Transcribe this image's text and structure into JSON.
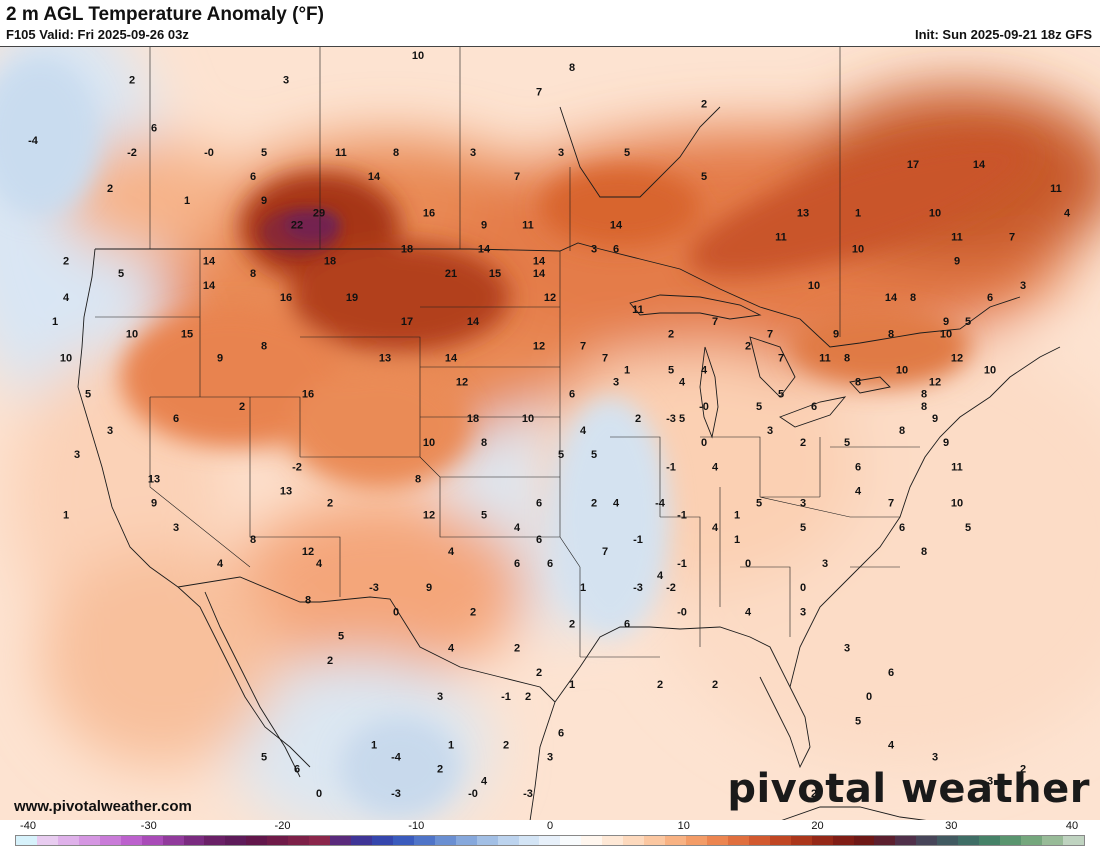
{
  "header": {
    "title": "2 m AGL Temperature Anomaly (°F)",
    "valid": "F105 Valid: Fri 2025-09-26 03z",
    "init": "Init: Sun 2025-09-21 18z GFS"
  },
  "footer": {
    "site_url": "www.pivotalweather.com",
    "logo": "pivotal weather"
  },
  "colorbar": {
    "ticks": [
      "-40",
      "-30",
      "-20",
      "-10",
      "0",
      "10",
      "20",
      "30",
      "40"
    ],
    "min": -40,
    "max": 40,
    "colors": [
      "#d7f2fb",
      "#e8ccf0",
      "#dfb1ea",
      "#d596e2",
      "#c97bd8",
      "#bc61cd",
      "#a94bb8",
      "#913a9c",
      "#7a2b80",
      "#6a2067",
      "#5e1b5a",
      "#62164b",
      "#6f1a48",
      "#7d2048",
      "#8b264b",
      "#5a2a7c",
      "#3f3597",
      "#3546ad",
      "#3a5bbd",
      "#4f74c8",
      "#6a8fd2",
      "#86a8dc",
      "#a2bfe5",
      "#bcd3ee",
      "#d3e4f5",
      "#e7f0fa",
      "#f8fbfd",
      "#fff6ee",
      "#fee8d6",
      "#fdd9bd",
      "#fbc7a1",
      "#f8b283",
      "#f39c67",
      "#ec8550",
      "#e06f3e",
      "#d2592f",
      "#c04623",
      "#ab361b",
      "#952817",
      "#801d15",
      "#6e1816",
      "#5c1f2e",
      "#50304a",
      "#474559",
      "#415a61",
      "#3f6e66",
      "#468268",
      "#5a956f",
      "#75a77d",
      "#98bb98",
      "#bfd3c0"
    ]
  },
  "anomaly_labels": [
    {
      "v": "2",
      "lon": -138,
      "lat": 57
    },
    {
      "v": "3",
      "lon": -124,
      "lat": 57
    },
    {
      "v": "10",
      "lon": -112,
      "lat": 59
    },
    {
      "v": "8",
      "lon": -98,
      "lat": 58
    },
    {
      "v": "-4",
      "lon": -147,
      "lat": 52
    },
    {
      "v": "6",
      "lon": -136,
      "lat": 53
    },
    {
      "v": "7",
      "lon": -101,
      "lat": 56
    },
    {
      "v": "2",
      "lon": -86,
      "lat": 55
    },
    {
      "v": "-2",
      "lon": -138,
      "lat": 51
    },
    {
      "v": "-0",
      "lon": -131,
      "lat": 51
    },
    {
      "v": "5",
      "lon": -126,
      "lat": 51
    },
    {
      "v": "11",
      "lon": -119,
      "lat": 51
    },
    {
      "v": "8",
      "lon": -114,
      "lat": 51
    },
    {
      "v": "3",
      "lon": -107,
      "lat": 51
    },
    {
      "v": "3",
      "lon": -99,
      "lat": 51
    },
    {
      "v": "5",
      "lon": -93,
      "lat": 51
    },
    {
      "v": "17",
      "lon": -67,
      "lat": 50
    },
    {
      "v": "14",
      "lon": -61,
      "lat": 50
    },
    {
      "v": "2",
      "lon": -140,
      "lat": 48
    },
    {
      "v": "6",
      "lon": -127,
      "lat": 49
    },
    {
      "v": "14",
      "lon": -116,
      "lat": 49
    },
    {
      "v": "7",
      "lon": -103,
      "lat": 49
    },
    {
      "v": "5",
      "lon": -86,
      "lat": 49
    },
    {
      "v": "11",
      "lon": -54,
      "lat": 48
    },
    {
      "v": "1",
      "lon": -133,
      "lat": 47
    },
    {
      "v": "9",
      "lon": -126,
      "lat": 47
    },
    {
      "v": "13",
      "lon": -77,
      "lat": 46
    },
    {
      "v": "16",
      "lon": -111,
      "lat": 46
    },
    {
      "v": "22",
      "lon": -123,
      "lat": 45
    },
    {
      "v": "29",
      "lon": -121,
      "lat": 46
    },
    {
      "v": "9",
      "lon": -106,
      "lat": 45
    },
    {
      "v": "11",
      "lon": -102,
      "lat": 45
    },
    {
      "v": "14",
      "lon": -94,
      "lat": 45
    },
    {
      "v": "1",
      "lon": -72,
      "lat": 46
    },
    {
      "v": "10",
      "lon": -65,
      "lat": 46
    },
    {
      "v": "4",
      "lon": -53,
      "lat": 46
    },
    {
      "v": "3",
      "lon": -96,
      "lat": 43
    },
    {
      "v": "2",
      "lon": -144,
      "lat": 42
    },
    {
      "v": "14",
      "lon": -131,
      "lat": 42
    },
    {
      "v": "18",
      "lon": -120,
      "lat": 42
    },
    {
      "v": "18",
      "lon": -113,
      "lat": 43
    },
    {
      "v": "14",
      "lon": -106,
      "lat": 43
    },
    {
      "v": "14",
      "lon": -101,
      "lat": 42
    },
    {
      "v": "6",
      "lon": -94,
      "lat": 43
    },
    {
      "v": "11",
      "lon": -79,
      "lat": 44
    },
    {
      "v": "10",
      "lon": -72,
      "lat": 43
    },
    {
      "v": "11",
      "lon": -63,
      "lat": 44
    },
    {
      "v": "7",
      "lon": -58,
      "lat": 44
    },
    {
      "v": "8",
      "lon": -127,
      "lat": 41
    },
    {
      "v": "21",
      "lon": -109,
      "lat": 41
    },
    {
      "v": "15",
      "lon": -105,
      "lat": 41
    },
    {
      "v": "14",
      "lon": -101,
      "lat": 41
    },
    {
      "v": "9",
      "lon": -63,
      "lat": 42
    },
    {
      "v": "5",
      "lon": -139,
      "lat": 41
    },
    {
      "v": "14",
      "lon": -131,
      "lat": 40
    },
    {
      "v": "10",
      "lon": -76,
      "lat": 40
    },
    {
      "v": "4",
      "lon": -144,
      "lat": 39
    },
    {
      "v": "16",
      "lon": -124,
      "lat": 39
    },
    {
      "v": "19",
      "lon": -118,
      "lat": 39
    },
    {
      "v": "12",
      "lon": -100,
      "lat": 39
    },
    {
      "v": "14",
      "lon": -69,
      "lat": 39
    },
    {
      "v": "8",
      "lon": -67,
      "lat": 39
    },
    {
      "v": "6",
      "lon": -60,
      "lat": 39
    },
    {
      "v": "3",
      "lon": -57,
      "lat": 40
    },
    {
      "v": "11",
      "lon": -92,
      "lat": 38
    },
    {
      "v": "7",
      "lon": -85,
      "lat": 37
    },
    {
      "v": "9",
      "lon": -64,
      "lat": 37
    },
    {
      "v": "1",
      "lon": -145,
      "lat": 37
    },
    {
      "v": "10",
      "lon": -138,
      "lat": 36
    },
    {
      "v": "15",
      "lon": -133,
      "lat": 36
    },
    {
      "v": "17",
      "lon": -113,
      "lat": 37
    },
    {
      "v": "14",
      "lon": -107,
      "lat": 37
    },
    {
      "v": "2",
      "lon": -89,
      "lat": 36
    },
    {
      "v": "7",
      "lon": -80,
      "lat": 36
    },
    {
      "v": "9",
      "lon": -74,
      "lat": 36
    },
    {
      "v": "8",
      "lon": -69,
      "lat": 36
    },
    {
      "v": "10",
      "lon": -64,
      "lat": 36
    },
    {
      "v": "5",
      "lon": -62,
      "lat": 37
    },
    {
      "v": "8",
      "lon": -126,
      "lat": 35
    },
    {
      "v": "12",
      "lon": -101,
      "lat": 35
    },
    {
      "v": "7",
      "lon": -97,
      "lat": 35
    },
    {
      "v": "2",
      "lon": -82,
      "lat": 35
    },
    {
      "v": "7",
      "lon": -79,
      "lat": 34
    },
    {
      "v": "8",
      "lon": -73,
      "lat": 34
    },
    {
      "v": "12",
      "lon": -63,
      "lat": 34
    },
    {
      "v": "10",
      "lon": -144,
      "lat": 34
    },
    {
      "v": "9",
      "lon": -130,
      "lat": 34
    },
    {
      "v": "13",
      "lon": -115,
      "lat": 34
    },
    {
      "v": "14",
      "lon": -109,
      "lat": 34
    },
    {
      "v": "7",
      "lon": -95,
      "lat": 34
    },
    {
      "v": "5",
      "lon": -89,
      "lat": 33
    },
    {
      "v": "4",
      "lon": -86,
      "lat": 33
    },
    {
      "v": "11",
      "lon": -75,
      "lat": 34
    },
    {
      "v": "10",
      "lon": -68,
      "lat": 33
    },
    {
      "v": "10",
      "lon": -60,
      "lat": 33
    },
    {
      "v": "1",
      "lon": -93,
      "lat": 33
    },
    {
      "v": "4",
      "lon": -88,
      "lat": 32
    },
    {
      "v": "5",
      "lon": -79,
      "lat": 31
    },
    {
      "v": "8",
      "lon": -72,
      "lat": 32
    },
    {
      "v": "8",
      "lon": -66,
      "lat": 31
    },
    {
      "v": "12",
      "lon": -65,
      "lat": 32
    },
    {
      "v": "5",
      "lon": -142,
      "lat": 31
    },
    {
      "v": "16",
      "lon": -122,
      "lat": 31
    },
    {
      "v": "12",
      "lon": -108,
      "lat": 32
    },
    {
      "v": "6",
      "lon": -98,
      "lat": 31
    },
    {
      "v": "3",
      "lon": -94,
      "lat": 32
    },
    {
      "v": "-0",
      "lon": -86,
      "lat": 30
    },
    {
      "v": "5",
      "lon": -81,
      "lat": 30
    },
    {
      "v": "6",
      "lon": -76,
      "lat": 30
    },
    {
      "v": "8",
      "lon": -66,
      "lat": 30
    },
    {
      "v": "6",
      "lon": -134,
      "lat": 29
    },
    {
      "v": "2",
      "lon": -128,
      "lat": 30
    },
    {
      "v": "18",
      "lon": -107,
      "lat": 29
    },
    {
      "v": "10",
      "lon": -102,
      "lat": 29
    },
    {
      "v": "2",
      "lon": -92,
      "lat": 29
    },
    {
      "v": "-3",
      "lon": -89,
      "lat": 29
    },
    {
      "v": "5",
      "lon": -88,
      "lat": 29
    },
    {
      "v": "3",
      "lon": -80,
      "lat": 28
    },
    {
      "v": "9",
      "lon": -65,
      "lat": 29
    },
    {
      "v": "3",
      "lon": -140,
      "lat": 28
    },
    {
      "v": "10",
      "lon": -111,
      "lat": 27
    },
    {
      "v": "8",
      "lon": -106,
      "lat": 27
    },
    {
      "v": "4",
      "lon": -97,
      "lat": 28
    },
    {
      "v": "0",
      "lon": -86,
      "lat": 27
    },
    {
      "v": "2",
      "lon": -77,
      "lat": 27
    },
    {
      "v": "5",
      "lon": -73,
      "lat": 27
    },
    {
      "v": "8",
      "lon": -68,
      "lat": 28
    },
    {
      "v": "9",
      "lon": -64,
      "lat": 27
    },
    {
      "v": "3",
      "lon": -143,
      "lat": 26
    },
    {
      "v": "-2",
      "lon": -123,
      "lat": 25
    },
    {
      "v": "5",
      "lon": -99,
      "lat": 26
    },
    {
      "v": "5",
      "lon": -96,
      "lat": 26
    },
    {
      "v": "-1",
      "lon": -89,
      "lat": 25
    },
    {
      "v": "4",
      "lon": -85,
      "lat": 25
    },
    {
      "v": "6",
      "lon": -72,
      "lat": 25
    },
    {
      "v": "11",
      "lon": -63,
      "lat": 25
    },
    {
      "v": "13",
      "lon": -136,
      "lat": 24
    },
    {
      "v": "13",
      "lon": -124,
      "lat": 23
    },
    {
      "v": "8",
      "lon": -112,
      "lat": 24
    },
    {
      "v": "6",
      "lon": -101,
      "lat": 22
    },
    {
      "v": "4",
      "lon": -94,
      "lat": 22
    },
    {
      "v": "-4",
      "lon": -90,
      "lat": 22
    },
    {
      "v": "5",
      "lon": -81,
      "lat": 22
    },
    {
      "v": "3",
      "lon": -77,
      "lat": 22
    },
    {
      "v": "7",
      "lon": -69,
      "lat": 22
    },
    {
      "v": "10",
      "lon": -63,
      "lat": 22
    },
    {
      "v": "4",
      "lon": -72,
      "lat": 23
    },
    {
      "v": "9",
      "lon": -136,
      "lat": 22
    },
    {
      "v": "2",
      "lon": -120,
      "lat": 22
    },
    {
      "v": "12",
      "lon": -111,
      "lat": 21
    },
    {
      "v": "2",
      "lon": -96,
      "lat": 22
    },
    {
      "v": "-1",
      "lon": -88,
      "lat": 21
    },
    {
      "v": "1",
      "lon": -83,
      "lat": 21
    },
    {
      "v": "6",
      "lon": -68,
      "lat": 20
    },
    {
      "v": "5",
      "lon": -62,
      "lat": 20
    },
    {
      "v": "1",
      "lon": -144,
      "lat": 21
    },
    {
      "v": "3",
      "lon": -134,
      "lat": 20
    },
    {
      "v": "8",
      "lon": -127,
      "lat": 19
    },
    {
      "v": "5",
      "lon": -106,
      "lat": 21
    },
    {
      "v": "4",
      "lon": -103,
      "lat": 20
    },
    {
      "v": "6",
      "lon": -101,
      "lat": 19
    },
    {
      "v": "-1",
      "lon": -92,
      "lat": 19
    },
    {
      "v": "4",
      "lon": -85,
      "lat": 20
    },
    {
      "v": "1",
      "lon": -83,
      "lat": 19
    },
    {
      "v": "5",
      "lon": -77,
      "lat": 20
    },
    {
      "v": "12",
      "lon": -122,
      "lat": 18
    },
    {
      "v": "4",
      "lon": -109,
      "lat": 18
    },
    {
      "v": "7",
      "lon": -95,
      "lat": 18
    },
    {
      "v": "0",
      "lon": -82,
      "lat": 17
    },
    {
      "v": "3",
      "lon": -75,
      "lat": 17
    },
    {
      "v": "8",
      "lon": -66,
      "lat": 18
    },
    {
      "v": "4",
      "lon": -130,
      "lat": 17
    },
    {
      "v": "4",
      "lon": -121,
      "lat": 17
    },
    {
      "v": "6",
      "lon": -103,
      "lat": 17
    },
    {
      "v": "6",
      "lon": -100,
      "lat": 17
    },
    {
      "v": "-1",
      "lon": -88,
      "lat": 17
    },
    {
      "v": "4",
      "lon": -90,
      "lat": 16
    },
    {
      "v": "-3",
      "lon": -92,
      "lat": 15
    },
    {
      "v": "-2",
      "lon": -89,
      "lat": 15
    },
    {
      "v": "0",
      "lon": -77,
      "lat": 15
    },
    {
      "v": "8",
      "lon": -122,
      "lat": 14
    },
    {
      "v": "-3",
      "lon": -116,
      "lat": 15
    },
    {
      "v": "9",
      "lon": -111,
      "lat": 15
    },
    {
      "v": "1",
      "lon": -97,
      "lat": 15
    },
    {
      "v": "0",
      "lon": -114,
      "lat": 13
    },
    {
      "v": "2",
      "lon": -107,
      "lat": 13
    },
    {
      "v": "-0",
      "lon": -88,
      "lat": 13
    },
    {
      "v": "4",
      "lon": -82,
      "lat": 13
    },
    {
      "v": "3",
      "lon": -77,
      "lat": 13
    },
    {
      "v": "2",
      "lon": -98,
      "lat": 12
    },
    {
      "v": "6",
      "lon": -93,
      "lat": 12
    },
    {
      "v": "5",
      "lon": -119,
      "lat": 11
    },
    {
      "v": "4",
      "lon": -109,
      "lat": 10
    },
    {
      "v": "2",
      "lon": -103,
      "lat": 10
    },
    {
      "v": "3",
      "lon": -73,
      "lat": 10
    },
    {
      "v": "2",
      "lon": -120,
      "lat": 9
    },
    {
      "v": "2",
      "lon": -101,
      "lat": 8
    },
    {
      "v": "6",
      "lon": -69,
      "lat": 8
    },
    {
      "v": "1",
      "lon": -98,
      "lat": 7
    },
    {
      "v": "2",
      "lon": -90,
      "lat": 7
    },
    {
      "v": "2",
      "lon": -85,
      "lat": 7
    },
    {
      "v": "3",
      "lon": -110,
      "lat": 6
    },
    {
      "v": "-1",
      "lon": -104,
      "lat": 6
    },
    {
      "v": "2",
      "lon": -102,
      "lat": 6
    },
    {
      "v": "0",
      "lon": -71,
      "lat": 6
    },
    {
      "v": "5",
      "lon": -72,
      "lat": 4
    },
    {
      "v": "4",
      "lon": -69,
      "lat": 2
    },
    {
      "v": "1",
      "lon": -116,
      "lat": 2
    },
    {
      "v": "1",
      "lon": -109,
      "lat": 2
    },
    {
      "v": "2",
      "lon": -104,
      "lat": 2
    },
    {
      "v": "6",
      "lon": -99,
      "lat": 3
    },
    {
      "v": "5",
      "lon": -126,
      "lat": 1
    },
    {
      "v": "-4",
      "lon": -114,
      "lat": 1
    },
    {
      "v": "3",
      "lon": -100,
      "lat": 1
    },
    {
      "v": "3",
      "lon": -65,
      "lat": 1
    },
    {
      "v": "6",
      "lon": -123,
      "lat": 0
    },
    {
      "v": "2",
      "lon": -110,
      "lat": 0
    },
    {
      "v": "4",
      "lon": -106,
      "lat": -1
    },
    {
      "v": "3",
      "lon": -60,
      "lat": -1
    },
    {
      "v": "2",
      "lon": -57,
      "lat": 0
    },
    {
      "v": "0",
      "lon": -121,
      "lat": -2
    },
    {
      "v": "-3",
      "lon": -114,
      "lat": -2
    },
    {
      "v": "-0",
      "lon": -107,
      "lat": -2
    },
    {
      "v": "-3",
      "lon": -102,
      "lat": -2
    },
    {
      "v": "2",
      "lon": -76,
      "lat": -2
    },
    {
      "v": "2",
      "lon": -104,
      "lat": -4
    }
  ]
}
